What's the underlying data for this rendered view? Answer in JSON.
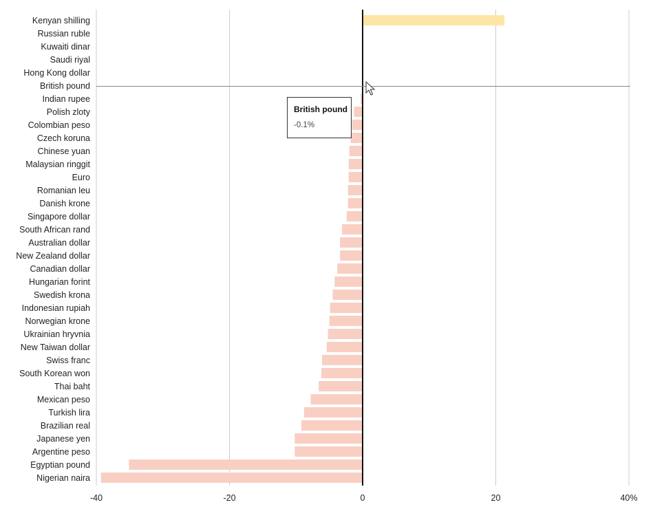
{
  "chart_data": {
    "type": "bar",
    "orientation": "horizontal",
    "categories": [
      "Kenyan shilling",
      "Russian ruble",
      "Kuwaiti dinar",
      "Saudi riyal",
      "Hong Kong dollar",
      "British pound",
      "Indian rupee",
      "Polish zloty",
      "Colombian peso",
      "Czech koruna",
      "Chinese yuan",
      "Malaysian ringgit",
      "Euro",
      "Romanian leu",
      "Danish krone",
      "Singapore dollar",
      "South African rand",
      "Australian dollar",
      "New Zealand dollar",
      "Canadian dollar",
      "Hungarian forint",
      "Swedish krona",
      "Indonesian rupiah",
      "Norwegian krone",
      "Ukrainian hryvnia",
      "New Taiwan dollar",
      "Swiss franc",
      "South Korean won",
      "Thai baht",
      "Mexican peso",
      "Turkish lira",
      "Brazilian real",
      "Japanese yen",
      "Argentine peso",
      "Egyptian pound",
      "Nigerian naira"
    ],
    "values": [
      21.3,
      0,
      0,
      0,
      0,
      -0.1,
      -0.3,
      -1.3,
      -1.6,
      -1.8,
      -2.0,
      -2.1,
      -2.1,
      -2.2,
      -2.2,
      -2.4,
      -3.1,
      -3.4,
      -3.4,
      -3.8,
      -4.2,
      -4.5,
      -4.9,
      -5.0,
      -5.2,
      -5.4,
      -6.1,
      -6.2,
      -6.6,
      -7.8,
      -8.8,
      -9.2,
      -10.2,
      -10.2,
      -35.1,
      -39.3
    ],
    "x_ticks": [
      "-40",
      "-20",
      "0",
      "20",
      "40%"
    ],
    "x_tick_values": [
      -40,
      -20,
      0,
      20,
      40
    ],
    "xlim": [
      -40,
      40
    ],
    "grid": true,
    "colors": {
      "positive": "#fde5a5",
      "negative": "#f9cfc3",
      "zero_line": "#111111",
      "grid": "#cccccc"
    },
    "highlight_category": "British pound"
  },
  "tooltip": {
    "title": "British pound",
    "value": "-0.1%"
  }
}
